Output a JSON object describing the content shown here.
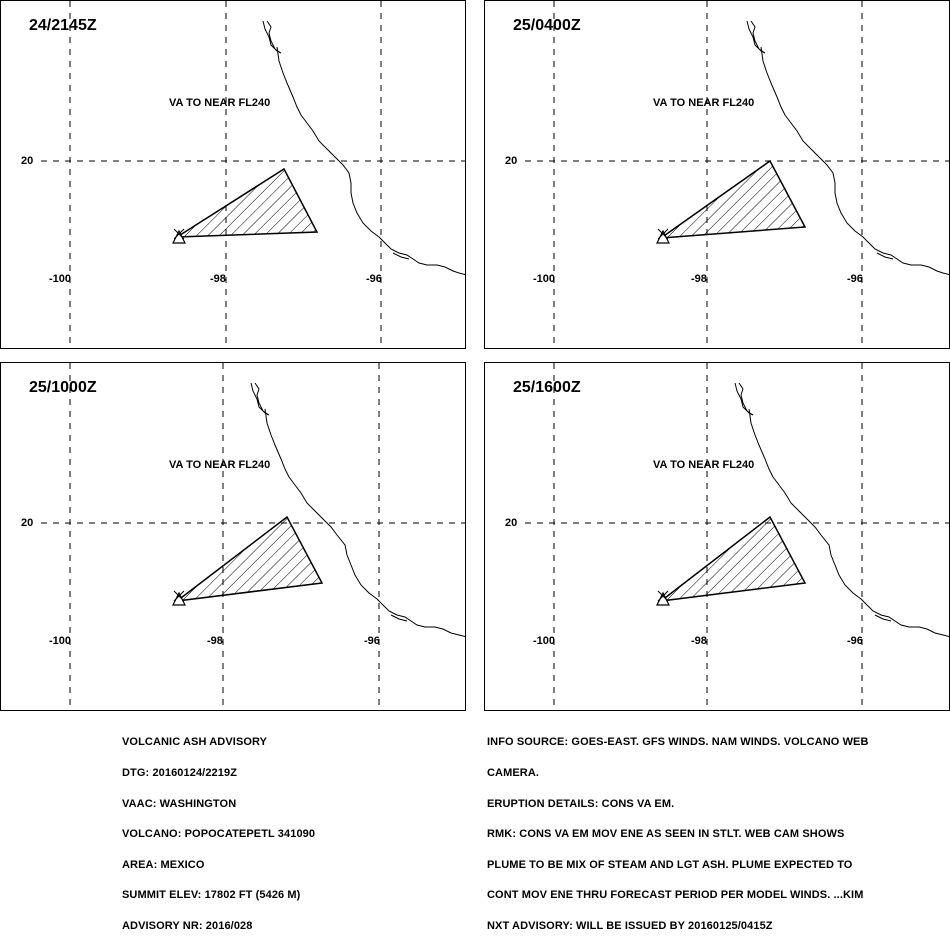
{
  "panels": [
    {
      "time": "24/2145Z",
      "va_label": "VA TO NEAR FL240"
    },
    {
      "time": "25/0400Z",
      "va_label": "VA TO NEAR FL240"
    },
    {
      "time": "25/1000Z",
      "va_label": "VA TO NEAR FL240"
    },
    {
      "time": "25/1600Z",
      "va_label": "VA TO NEAR FL240"
    }
  ],
  "grid_labels": {
    "lat_20": "20",
    "lon_100": "-100",
    "lon_98": "-98",
    "lon_96": "-96"
  },
  "advisory": {
    "header": "VOLCANIC ASH ADVISORY",
    "dtg": "DTG: 20160124/2219Z",
    "vaac": "VAAC: WASHINGTON",
    "volcano": "VOLCANO: POPOCATEPETL 341090",
    "area": "AREA: MEXICO",
    "summit": "SUMMIT ELEV: 17802 FT (5426 M)",
    "advisory_nr": "ADVISORY NR: 2016/028"
  },
  "details": {
    "info_source_1": "INFO SOURCE: GOES-EAST. GFS WINDS. NAM WINDS. VOLCANO WEB",
    "info_source_2": "CAMERA.",
    "eruption": "ERUPTION DETAILS: CONS VA EM.",
    "rmk_1": "RMK: CONS VA EM MOV ENE AS SEEN IN STLT. WEB CAM SHOWS",
    "rmk_2": "PLUME TO BE MIX OF STEAM AND LGT ASH. PLUME EXPECTED TO",
    "rmk_3": "CONT MOV ENE THRU FORECAST PERIOD PER MODEL WINDS. ...KIM",
    "next": "NXT ADVISORY: WILL BE ISSUED BY 20160125/0415Z"
  },
  "colors": {
    "line": "#000000",
    "background": "#ffffff"
  }
}
